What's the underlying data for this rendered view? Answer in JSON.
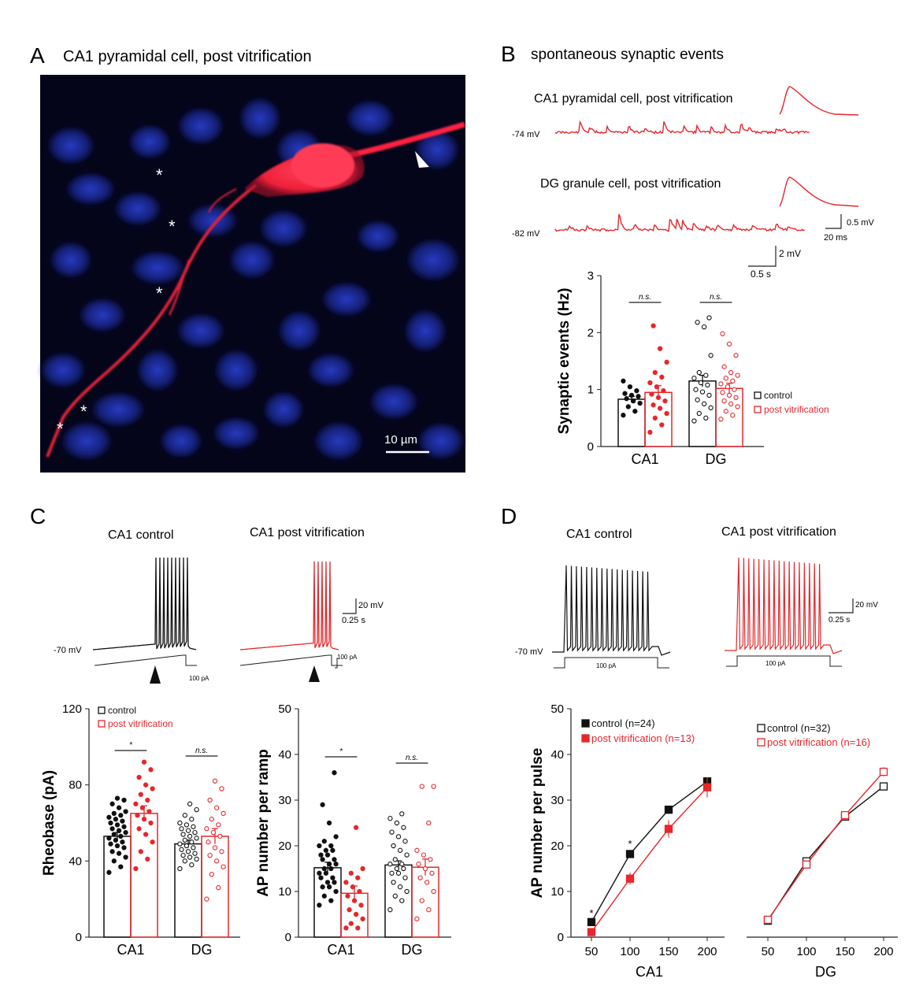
{
  "colors": {
    "control": "#111111",
    "vitrification": "#e8262b",
    "micro_bg": "#05051a",
    "nucleus": "#1b2fb8",
    "cell": "#ff1f3a"
  },
  "panelA": {
    "letter": "A",
    "title": "CA1 pyramidal cell, post vitrification",
    "scale_label": "10 µm",
    "asterisk": "*"
  },
  "panelB": {
    "letter": "B",
    "title": "spontaneous synaptic events",
    "trace1_label": "CA1 pyramidal cell, post vitrification",
    "trace1_vm": "-74 mV",
    "trace2_label": "DG granule cell, post vitrification",
    "trace2_vm": "-82 mV",
    "inset_scale_y": "0.5 mV",
    "inset_scale_x": "20 ms",
    "scale_y": "2 mV",
    "scale_x": "0.5 s"
  },
  "panelC": {
    "letter": "C",
    "trace_ctrl_label": "CA1 control",
    "trace_vit_label": "CA1 post vitrification",
    "vm": "-70 mV",
    "scale_y": "20 mV",
    "scale_x": "0.25 s",
    "ramp_label": "100 pA",
    "ramp_label2": "100 pA"
  },
  "panelD": {
    "letter": "D",
    "trace_ctrl_label": "CA1 control",
    "trace_vit_label": "CA1 post vitrification",
    "vm": "-70 mV",
    "scale_y": "20 mV",
    "scale_x": "0.25 s",
    "step_label": "100 pA"
  },
  "chart_data": [
    {
      "id": "synaptic",
      "type": "bar",
      "ylabel": "Synaptic events (Hz)",
      "categories": [
        "CA1",
        "DG"
      ],
      "ylim": [
        0,
        3
      ],
      "yticks": [
        0,
        1,
        2,
        3
      ],
      "series": [
        {
          "name": "control",
          "values": [
            0.83,
            1.15
          ],
          "sem": [
            0.05,
            0.1
          ]
        },
        {
          "name": "post vitrification",
          "values": [
            0.95,
            1.02
          ],
          "sem": [
            0.12,
            0.09
          ]
        }
      ],
      "significance": [
        "n.s.",
        "n.s."
      ],
      "points": {
        "control": [
          [
            0.55,
            0.62,
            0.7,
            0.76,
            0.8,
            0.84,
            0.88,
            0.9,
            0.93,
            0.98,
            1.05,
            1.15
          ],
          [
            0.45,
            0.5,
            0.58,
            0.68,
            0.75,
            0.82,
            0.9,
            0.96,
            1.0,
            1.08,
            1.12,
            1.2,
            1.25,
            1.3,
            1.6,
            2.1,
            2.18,
            2.26
          ]
        ],
        "post vitrification": [
          [
            0.25,
            0.38,
            0.5,
            0.58,
            0.67,
            0.73,
            0.8,
            0.86,
            0.92,
            0.98,
            1.05,
            1.12,
            1.22,
            1.3,
            1.48,
            1.72,
            2.12
          ],
          [
            0.48,
            0.55,
            0.62,
            0.7,
            0.75,
            0.8,
            0.86,
            0.9,
            0.95,
            1.0,
            1.05,
            1.1,
            1.15,
            1.2,
            1.25,
            1.3,
            1.4,
            1.6,
            1.8,
            1.98
          ]
        ]
      }
    },
    {
      "id": "rheobase",
      "type": "bar",
      "ylabel": "Rheobase (pA)",
      "categories": [
        "CA1",
        "DG"
      ],
      "ylim": [
        0,
        120
      ],
      "yticks": [
        0,
        40,
        80,
        120
      ],
      "series": [
        {
          "name": "control",
          "values": [
            53,
            49
          ],
          "sem": [
            2,
            2
          ]
        },
        {
          "name": "post vitrification",
          "values": [
            65,
            53
          ],
          "sem": [
            4,
            4
          ]
        }
      ],
      "significance": [
        "*",
        "n.s."
      ],
      "points": {
        "control": [
          [
            34,
            37,
            40,
            42,
            44,
            45,
            47,
            48,
            49,
            50,
            51,
            52,
            53,
            54,
            55,
            56,
            57,
            58,
            59,
            60,
            61,
            62,
            63,
            64,
            65,
            66,
            68,
            70,
            72,
            73
          ],
          [
            36,
            38,
            40,
            41,
            42,
            43,
            44,
            45,
            46,
            47,
            48,
            49,
            50,
            51,
            52,
            53,
            54,
            55,
            56,
            57,
            58,
            59,
            60,
            62,
            64,
            67,
            70
          ]
        ],
        "post vitrification": [
          [
            36,
            41,
            45,
            50,
            54,
            57,
            60,
            62,
            64,
            66,
            68,
            70,
            72,
            75,
            78,
            80,
            84,
            88,
            92
          ],
          [
            20,
            26,
            33,
            37,
            40,
            43,
            45,
            47,
            50,
            53,
            55,
            57,
            59,
            62,
            65,
            68,
            72,
            78,
            82
          ]
        ]
      }
    },
    {
      "id": "ap_ramp",
      "type": "bar",
      "ylabel": "AP number per ramp",
      "categories": [
        "CA1",
        "DG"
      ],
      "ylim": [
        0,
        50
      ],
      "yticks": [
        0,
        10,
        20,
        30,
        40,
        50
      ],
      "series": [
        {
          "name": "control",
          "values": [
            15.2,
            15.8
          ],
          "sem": [
            1.2,
            0.9
          ]
        },
        {
          "name": "post vitrification",
          "values": [
            9.6,
            15.3
          ],
          "sem": [
            1.6,
            1.8
          ]
        }
      ],
      "significance": [
        "*",
        "n.s."
      ],
      "points": {
        "control": [
          [
            7,
            8,
            9,
            10,
            11,
            11,
            12,
            12,
            13,
            13,
            14,
            14,
            15,
            15,
            16,
            16,
            17,
            17,
            18,
            18,
            19,
            19,
            20,
            20,
            21,
            22,
            25,
            29,
            36
          ],
          [
            6,
            8,
            9,
            10,
            11,
            12,
            13,
            14,
            14,
            15,
            15,
            16,
            16,
            17,
            18,
            19,
            20,
            21,
            22,
            23,
            24,
            25,
            26,
            27
          ]
        ],
        "post vitrification": [
          [
            2,
            2,
            3,
            4,
            5,
            6,
            7,
            8,
            9,
            10,
            11,
            12,
            13,
            14,
            15,
            24
          ],
          [
            4,
            6,
            8,
            10,
            12,
            13,
            14,
            15,
            16,
            17,
            18,
            19,
            25,
            33,
            33
          ]
        ]
      }
    },
    {
      "id": "ap_pulse_ca1",
      "type": "line",
      "ylabel": "AP number per pulse",
      "xlabel": "CA1",
      "x": [
        50,
        100,
        150,
        200
      ],
      "ylim": [
        0,
        50
      ],
      "yticks": [
        0,
        10,
        20,
        30,
        40,
        50
      ],
      "series": [
        {
          "name": "control (n=24)",
          "values": [
            3.3,
            18.2,
            27.9,
            34.1
          ],
          "sem": [
            0.5,
            0.8,
            0.9,
            0.8
          ]
        },
        {
          "name": "post vitrification (n=13)",
          "values": [
            1.1,
            12.8,
            23.7,
            32.8
          ],
          "sem": [
            0.6,
            1.3,
            1.9,
            2.2
          ]
        }
      ],
      "significance": [
        "*",
        "*",
        "",
        ""
      ]
    },
    {
      "id": "ap_pulse_dg",
      "type": "line",
      "xlabel": "DG",
      "x": [
        50,
        100,
        150,
        200
      ],
      "ylim": [
        0,
        50
      ],
      "series": [
        {
          "name": "control (n=32)",
          "values": [
            3.6,
            16.6,
            26.4,
            33.0
          ],
          "sem": [
            0.4,
            0.6,
            0.7,
            0.7
          ]
        },
        {
          "name": "post vitrification (n=16)",
          "values": [
            3.8,
            15.9,
            26.7,
            36.2
          ],
          "sem": [
            0.6,
            0.8,
            0.9,
            1.0
          ]
        }
      ]
    }
  ]
}
